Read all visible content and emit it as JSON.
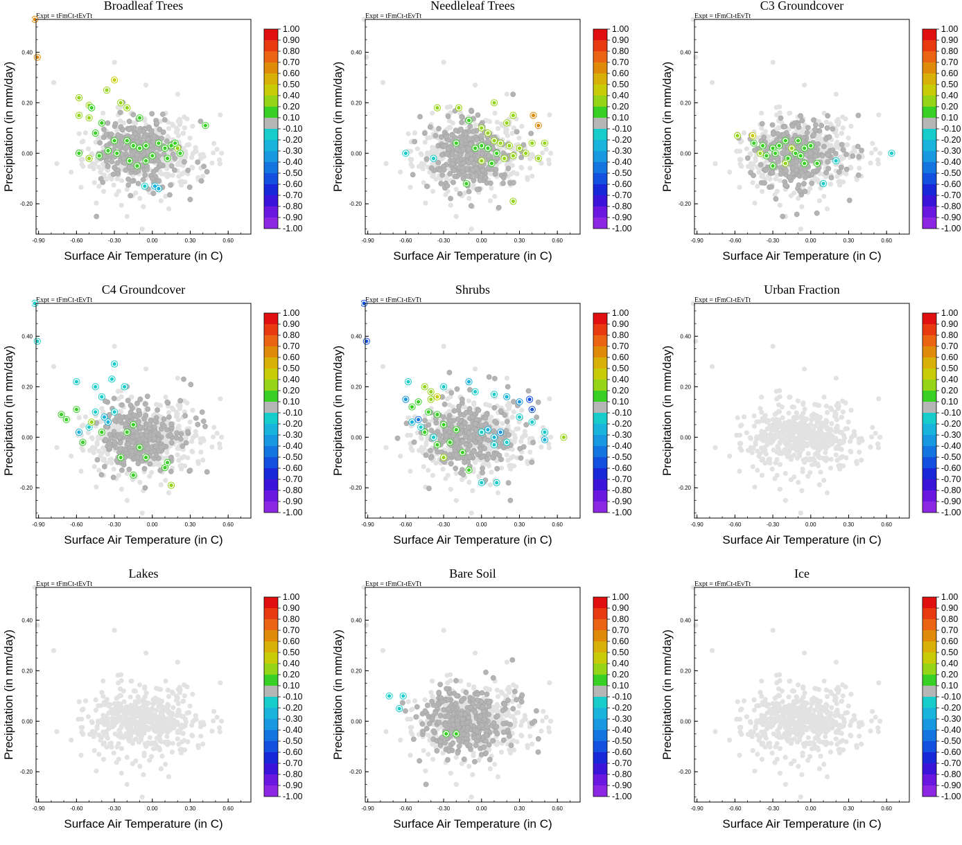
{
  "colors": {
    "background_point": "#e2e2e2",
    "neutral_point": "#b4b4b4",
    "colorbar": [
      "#e01010",
      "#e83a10",
      "#ea6414",
      "#e08a0a",
      "#d8b008",
      "#c8cc08",
      "#96d418",
      "#38d024",
      "#b6b6b6",
      "#18cccc",
      "#18b4dc",
      "#1898e0",
      "#1474e0",
      "#1450e0",
      "#1828d8",
      "#3a14d8",
      "#6a18e0",
      "#8c28e4"
    ]
  },
  "chart_data": {
    "type": "scatter",
    "expt_label": "Expt = tFmCt-tEvTt",
    "xlabel": "Surface Air Temperature (in C)",
    "ylabel": "Precipitation (in mm/day)",
    "xlim": [
      -0.92,
      0.78
    ],
    "ylim": [
      -0.32,
      0.53
    ],
    "xticks": [
      -0.9,
      -0.6,
      -0.3,
      0.0,
      0.3,
      0.6
    ],
    "xtick_labels": [
      "-0.90",
      "-0.60",
      "-0.30",
      "0.00",
      "0.30",
      "0.60"
    ],
    "yticks": [
      -0.2,
      0.0,
      0.2,
      0.4
    ],
    "ytick_labels": [
      "-0.20",
      "0.00",
      "0.20",
      "0.40"
    ],
    "colorbar_labels": [
      "1.00",
      "0.90",
      "0.80",
      "0.70",
      "0.60",
      "0.50",
      "0.40",
      "0.20",
      "0.10",
      "-0.10",
      "-0.20",
      "-0.30",
      "-0.40",
      "-0.50",
      "-0.60",
      "-0.70",
      "-0.80",
      "-0.90",
      "-1.00"
    ],
    "panels": [
      {
        "title": "Broadleaf Trees",
        "gray_cloud": 300,
        "highlights": [
          [
            -0.93,
            0.53,
            3
          ],
          [
            -0.91,
            0.38,
            3
          ],
          [
            -0.58,
            0.22,
            6
          ],
          [
            -0.5,
            0.19,
            6
          ],
          [
            -0.36,
            0.25,
            6
          ],
          [
            -0.3,
            0.29,
            5
          ],
          [
            -0.25,
            0.2,
            6
          ],
          [
            -0.2,
            0.18,
            6
          ],
          [
            -0.58,
            0.15,
            6
          ],
          [
            -0.5,
            0.14,
            6
          ],
          [
            -0.45,
            0.08,
            7
          ],
          [
            -0.4,
            0.12,
            7
          ],
          [
            -0.48,
            0.18,
            7
          ],
          [
            -0.2,
            0.05,
            7
          ],
          [
            -0.15,
            0.03,
            7
          ],
          [
            -0.1,
            0.02,
            7
          ],
          [
            -0.05,
            0.03,
            7
          ],
          [
            0.05,
            0.04,
            7
          ],
          [
            0.1,
            0.02,
            7
          ],
          [
            0.15,
            0.03,
            7
          ],
          [
            0.2,
            0.02,
            6
          ],
          [
            0.22,
            0.0,
            7
          ],
          [
            0.42,
            0.11,
            7
          ],
          [
            -0.58,
            0.0,
            7
          ],
          [
            -0.5,
            -0.02,
            6
          ],
          [
            -0.42,
            -0.01,
            7
          ],
          [
            -0.35,
            0.01,
            7
          ],
          [
            -0.28,
            0.0,
            7
          ],
          [
            -0.18,
            -0.03,
            7
          ],
          [
            -0.12,
            -0.05,
            7
          ],
          [
            -0.05,
            -0.03,
            7
          ],
          [
            0.0,
            -0.01,
            7
          ],
          [
            0.12,
            -0.02,
            7
          ],
          [
            0.18,
            0.04,
            7
          ],
          [
            -0.3,
            0.05,
            7
          ],
          [
            -0.1,
            0.14,
            7
          ],
          [
            -0.06,
            -0.13,
            9
          ],
          [
            0.02,
            -0.13,
            10
          ],
          [
            0.05,
            -0.14,
            10
          ]
        ]
      },
      {
        "title": "Needleleaf Trees",
        "gray_cloud": 300,
        "highlights": [
          [
            0.41,
            0.15,
            3
          ],
          [
            0.45,
            0.11,
            3
          ],
          [
            -0.35,
            0.18,
            6
          ],
          [
            -0.18,
            0.18,
            6
          ],
          [
            0.1,
            0.2,
            6
          ],
          [
            0.25,
            0.15,
            6
          ],
          [
            0.2,
            0.12,
            6
          ],
          [
            0.0,
            0.1,
            6
          ],
          [
            0.05,
            0.08,
            6
          ],
          [
            0.1,
            0.05,
            6
          ],
          [
            0.15,
            0.04,
            6
          ],
          [
            0.22,
            0.03,
            6
          ],
          [
            0.3,
            0.02,
            6
          ],
          [
            0.35,
            0.0,
            6
          ],
          [
            0.0,
            0.03,
            7
          ],
          [
            0.05,
            0.02,
            7
          ],
          [
            0.12,
            0.0,
            7
          ],
          [
            0.18,
            -0.02,
            6
          ],
          [
            0.25,
            -0.01,
            6
          ],
          [
            -0.1,
            0.13,
            7
          ],
          [
            -0.05,
            0.02,
            7
          ],
          [
            -0.2,
            0.04,
            7
          ],
          [
            0.08,
            -0.04,
            7
          ],
          [
            -0.12,
            -0.12,
            7
          ],
          [
            0.0,
            -0.03,
            6
          ],
          [
            0.45,
            -0.02,
            6
          ],
          [
            0.25,
            -0.19,
            6
          ],
          [
            0.4,
            0.04,
            6
          ],
          [
            0.5,
            0.04,
            6
          ],
          [
            -0.6,
            0.0,
            9
          ],
          [
            -0.38,
            -0.02,
            9
          ]
        ]
      },
      {
        "title": "C3 Groundcover",
        "gray_cloud": 300,
        "highlights": [
          [
            -0.58,
            0.07,
            6
          ],
          [
            -0.46,
            0.07,
            5
          ],
          [
            -0.38,
            0.03,
            7
          ],
          [
            -0.3,
            0.02,
            7
          ],
          [
            -0.25,
            0.03,
            7
          ],
          [
            -0.2,
            0.05,
            7
          ],
          [
            -0.1,
            0.05,
            7
          ],
          [
            -0.05,
            0.02,
            7
          ],
          [
            -0.35,
            -0.01,
            7
          ],
          [
            -0.28,
            0.0,
            7
          ],
          [
            -0.18,
            -0.02,
            7
          ],
          [
            -0.12,
            0.0,
            7
          ],
          [
            -0.08,
            -0.01,
            7
          ],
          [
            -0.05,
            -0.04,
            7
          ],
          [
            -0.3,
            -0.05,
            7
          ],
          [
            -0.2,
            -0.04,
            6
          ],
          [
            -0.45,
            0.04,
            7
          ],
          [
            -0.4,
            0.0,
            6
          ],
          [
            -0.15,
            0.02,
            6
          ],
          [
            0.0,
            0.03,
            7
          ],
          [
            0.05,
            -0.04,
            7
          ],
          [
            0.64,
            0.0,
            9
          ],
          [
            0.1,
            -0.12,
            9
          ],
          [
            0.2,
            -0.03,
            9
          ]
        ]
      },
      {
        "title": "C4 Groundcover",
        "gray_cloud": 300,
        "highlights": [
          [
            -0.93,
            0.53,
            9
          ],
          [
            -0.91,
            0.38,
            9
          ],
          [
            -0.6,
            0.22,
            9
          ],
          [
            -0.45,
            0.2,
            9
          ],
          [
            -0.3,
            0.29,
            9
          ],
          [
            -0.4,
            0.16,
            9
          ],
          [
            -0.32,
            0.23,
            9
          ],
          [
            -0.22,
            0.2,
            9
          ],
          [
            -0.45,
            0.1,
            9
          ],
          [
            -0.38,
            0.08,
            10
          ],
          [
            -0.3,
            0.1,
            9
          ],
          [
            -0.5,
            0.04,
            9
          ],
          [
            -0.58,
            0.02,
            10
          ],
          [
            -0.72,
            0.09,
            7
          ],
          [
            -0.68,
            0.07,
            7
          ],
          [
            -0.6,
            0.11,
            7
          ],
          [
            -0.55,
            -0.02,
            7
          ],
          [
            -0.48,
            0.06,
            6
          ],
          [
            -0.4,
            0.02,
            7
          ],
          [
            -0.2,
            0.02,
            7
          ],
          [
            -0.15,
            0.05,
            7
          ],
          [
            -0.1,
            -0.04,
            7
          ],
          [
            -0.05,
            -0.08,
            7
          ],
          [
            -0.25,
            -0.08,
            7
          ],
          [
            -0.15,
            -0.15,
            7
          ],
          [
            0.1,
            -0.12,
            7
          ],
          [
            0.12,
            -0.1,
            7
          ],
          [
            0.15,
            -0.19,
            6
          ],
          [
            -0.35,
            0.06,
            10
          ]
        ]
      },
      {
        "title": "Shrubs",
        "gray_cloud": 300,
        "highlights": [
          [
            -0.93,
            0.53,
            13
          ],
          [
            -0.91,
            0.38,
            13
          ],
          [
            -0.58,
            0.22,
            9
          ],
          [
            -0.45,
            0.2,
            6
          ],
          [
            -0.4,
            0.18,
            6
          ],
          [
            -0.3,
            0.2,
            9
          ],
          [
            -0.35,
            0.16,
            5
          ],
          [
            -0.4,
            0.15,
            6
          ],
          [
            -0.1,
            0.22,
            10
          ],
          [
            -0.05,
            0.18,
            9
          ],
          [
            0.1,
            0.17,
            9
          ],
          [
            0.2,
            0.16,
            10
          ],
          [
            0.3,
            0.14,
            11
          ],
          [
            0.38,
            0.15,
            13
          ],
          [
            0.4,
            0.11,
            13
          ],
          [
            0.3,
            0.08,
            9
          ],
          [
            0.4,
            0.06,
            9
          ],
          [
            0.5,
            0.02,
            9
          ],
          [
            0.5,
            -0.01,
            10
          ],
          [
            -0.5,
            0.14,
            7
          ],
          [
            -0.55,
            0.12,
            7
          ],
          [
            -0.42,
            0.1,
            7
          ],
          [
            -0.35,
            0.09,
            7
          ],
          [
            -0.3,
            0.05,
            7
          ],
          [
            -0.45,
            0.02,
            7
          ],
          [
            -0.2,
            0.03,
            7
          ],
          [
            -0.25,
            -0.02,
            7
          ],
          [
            -0.35,
            -0.03,
            7
          ],
          [
            -0.15,
            -0.06,
            7
          ],
          [
            -0.3,
            -0.08,
            6
          ],
          [
            -0.5,
            0.07,
            12
          ],
          [
            -0.6,
            0.15,
            11
          ],
          [
            -0.48,
            0.04,
            9
          ],
          [
            -0.55,
            0.06,
            10
          ],
          [
            0.0,
            0.02,
            9
          ],
          [
            0.05,
            0.03,
            10
          ],
          [
            0.1,
            0.0,
            10
          ],
          [
            0.15,
            0.02,
            11
          ],
          [
            0.2,
            -0.02,
            9
          ],
          [
            0.1,
            -0.03,
            9
          ],
          [
            0.65,
            0.0,
            6
          ],
          [
            0.0,
            -0.18,
            9
          ],
          [
            0.12,
            -0.18,
            9
          ],
          [
            -0.1,
            -0.13,
            7
          ],
          [
            -0.38,
            0.0,
            9
          ]
        ]
      },
      {
        "title": "Urban Fraction",
        "gray_cloud": 0,
        "highlights": []
      },
      {
        "title": "Lakes",
        "gray_cloud": 0,
        "highlights": []
      },
      {
        "title": "Bare Soil",
        "gray_cloud": 340,
        "highlights": [
          [
            -0.73,
            0.1,
            9
          ],
          [
            -0.62,
            0.1,
            9
          ],
          [
            -0.65,
            0.05,
            9
          ],
          [
            -0.28,
            -0.05,
            7
          ],
          [
            -0.2,
            -0.05,
            7
          ]
        ]
      },
      {
        "title": "Ice",
        "gray_cloud": 0,
        "highlights": []
      }
    ]
  }
}
